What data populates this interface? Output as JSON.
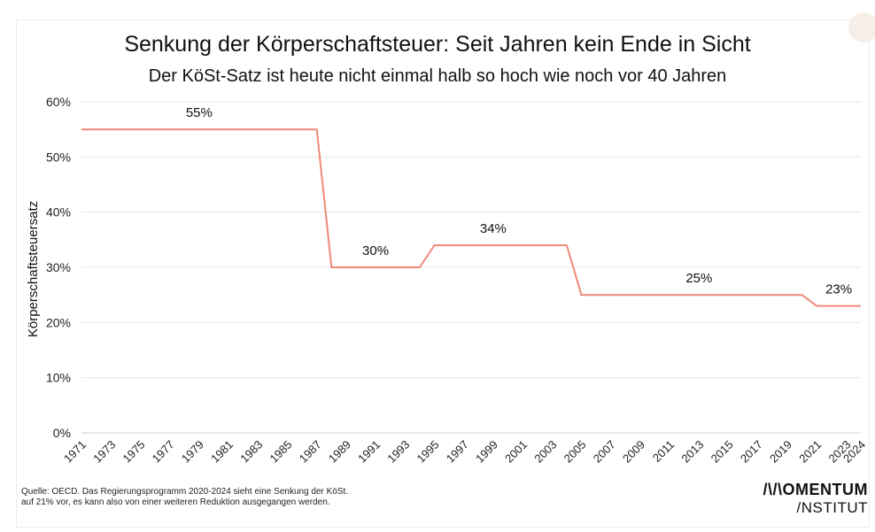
{
  "header": {
    "title": "Senkung der Körperschaftsteuer: Seit Jahren kein Ende in Sicht",
    "subtitle": "Der KöSt-Satz ist heute nicht einmal halb so hoch wie noch vor 40 Jahren"
  },
  "footer": {
    "source_line1": "Quelle: OECD. Das Regierungsprogramm 2020-2024 sieht eine Senkung der KöSt.",
    "source_line2": "auf 21% vor, es kann also von einer weiteren Reduktion ausgegangen werden.",
    "logo_top": "/\\/\\OMENTUM",
    "logo_bottom": "/NSTITUT"
  },
  "chart_data": {
    "type": "line",
    "title": "Senkung der Körperschaftsteuer: Seit Jahren kein Ende in Sicht",
    "subtitle": "Der KöSt-Satz ist heute nicht einmal halb so hoch wie noch vor 40 Jahren",
    "xlabel": "",
    "ylabel": "Körperschaftsteuersatz",
    "ylim": [
      0,
      60
    ],
    "yticks": [
      "0%",
      "10%",
      "20%",
      "30%",
      "40%",
      "50%",
      "60%"
    ],
    "xticks": [
      "1971",
      "1973",
      "1975",
      "1977",
      "1979",
      "1981",
      "1983",
      "1985",
      "1987",
      "1989",
      "1991",
      "1993",
      "1995",
      "1997",
      "1999",
      "2001",
      "2003",
      "2005",
      "2007",
      "2009",
      "2011",
      "2013",
      "2015",
      "2017",
      "2019",
      "2021",
      "2023",
      "2024"
    ],
    "grid": true,
    "line_color": "#f08878",
    "series": [
      {
        "x": [
          1971,
          1972,
          1973,
          1974,
          1975,
          1976,
          1977,
          1978,
          1979,
          1980,
          1981,
          1982,
          1983,
          1984,
          1985,
          1986,
          1987,
          1988,
          1989,
          1990,
          1991,
          1992,
          1993,
          1994,
          1995,
          1996,
          1997,
          1998,
          1999,
          2000,
          2001,
          2002,
          2003,
          2004,
          2005,
          2006,
          2007,
          2008,
          2009,
          2010,
          2011,
          2012,
          2013,
          2014,
          2015,
          2016,
          2017,
          2018,
          2019,
          2020,
          2021,
          2022,
          2023,
          2024
        ],
        "values": [
          55,
          55,
          55,
          55,
          55,
          55,
          55,
          55,
          55,
          55,
          55,
          55,
          55,
          55,
          55,
          55,
          55,
          30,
          30,
          30,
          30,
          30,
          30,
          30,
          34,
          34,
          34,
          34,
          34,
          34,
          34,
          34,
          34,
          34,
          25,
          25,
          25,
          25,
          25,
          25,
          25,
          25,
          25,
          25,
          25,
          25,
          25,
          25,
          25,
          25,
          23,
          23,
          23,
          23
        ]
      }
    ],
    "annotations": [
      {
        "text": "55%",
        "x": 1979,
        "y": 55
      },
      {
        "text": "30%",
        "x": 1991,
        "y": 30
      },
      {
        "text": "34%",
        "x": 1999,
        "y": 34
      },
      {
        "text": "25%",
        "x": 2013,
        "y": 25
      },
      {
        "text": "23%",
        "x": 2022.5,
        "y": 23
      }
    ]
  }
}
